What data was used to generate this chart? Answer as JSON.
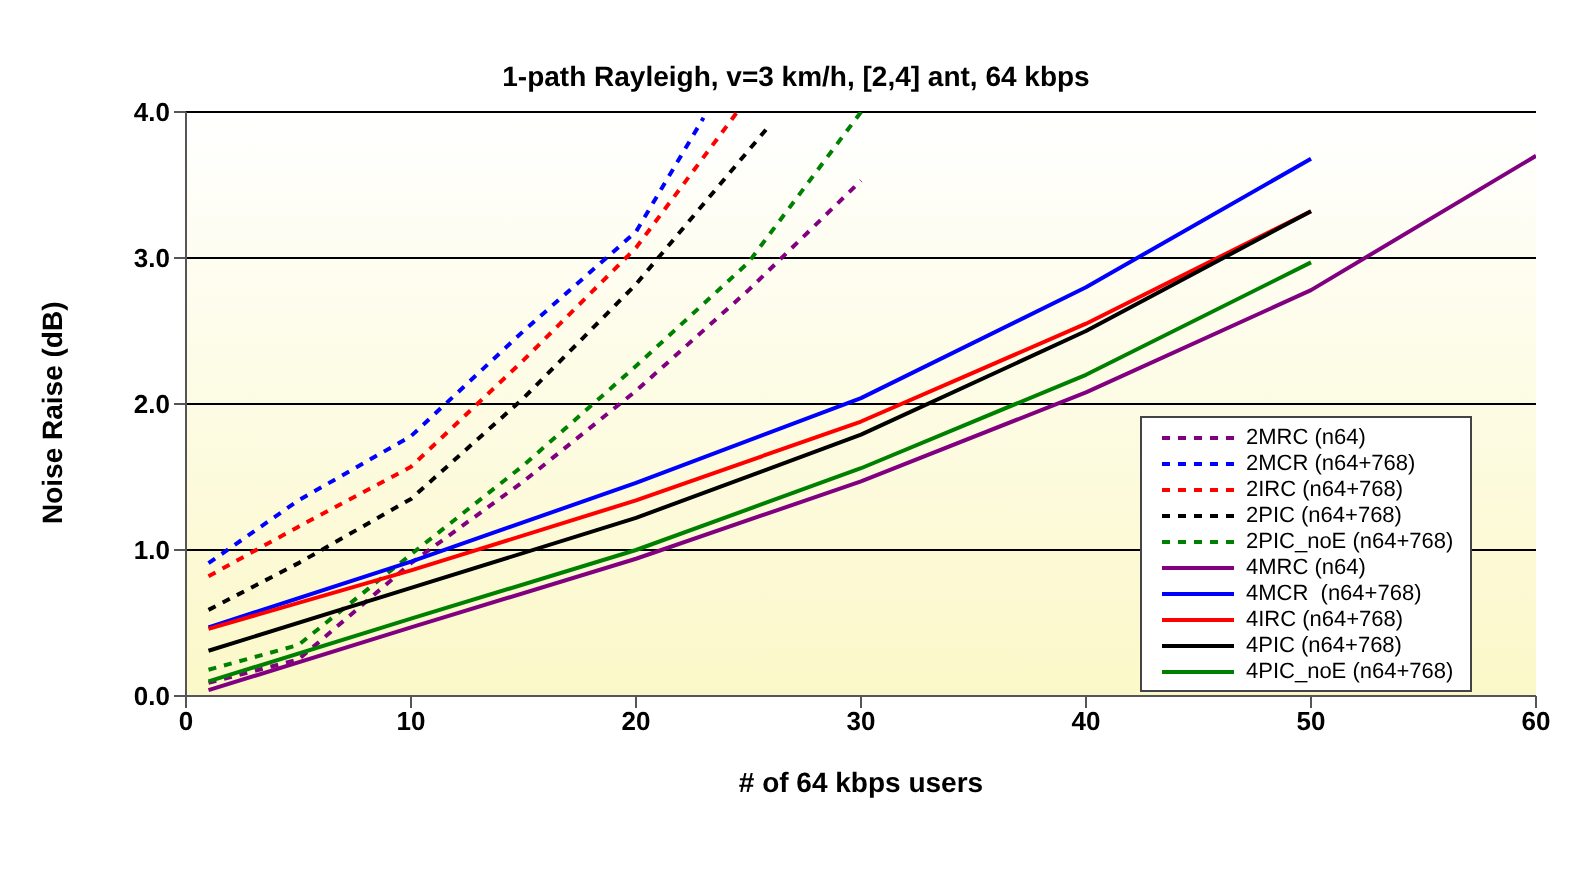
{
  "chart_data": {
    "type": "line",
    "title": "1-path Rayleigh, v=3 km/h, [2,4] ant, 64 kbps",
    "xlabel": "# of 64 kbps users",
    "ylabel": "Noise Raise (dB)",
    "xlim": [
      0,
      60
    ],
    "xticks": [
      0,
      10,
      20,
      30,
      40,
      50,
      60
    ],
    "ylim": [
      0,
      4
    ],
    "yticks": [
      {
        "value": 0,
        "label": "0.0"
      },
      {
        "value": 1,
        "label": "1.0"
      },
      {
        "value": 2,
        "label": "2.0"
      },
      {
        "value": 3,
        "label": "3.0"
      },
      {
        "value": 4,
        "label": "4.0"
      }
    ],
    "grid": "y",
    "legend": "bottom right",
    "marker": "none",
    "series": [
      {
        "name": "2MRC (n64)",
        "color": "#800080",
        "line_style": "dashed",
        "x": [
          1,
          5,
          10,
          15,
          20,
          25,
          30
        ],
        "values": [
          0.09,
          0.25,
          0.91,
          1.47,
          2.09,
          2.78,
          3.53
        ]
      },
      {
        "name": "2MCR (n64+768)",
        "color": "#0000ff",
        "line_style": "dashed",
        "x": [
          1,
          5,
          10,
          15,
          20,
          23
        ],
        "values": [
          0.91,
          1.34,
          1.78,
          2.5,
          3.18,
          3.96
        ]
      },
      {
        "name": "2IRC (n64+768)",
        "color": "#ff0000",
        "line_style": "dashed",
        "x": [
          1,
          5,
          10,
          15,
          20,
          24.5
        ],
        "values": [
          0.82,
          1.16,
          1.57,
          2.3,
          3.07,
          4.0
        ]
      },
      {
        "name": "2PIC (n64+768)",
        "color": "#000000",
        "line_style": "dashed",
        "x": [
          1,
          5,
          10,
          15,
          20,
          26
        ],
        "values": [
          0.59,
          0.91,
          1.35,
          2.04,
          2.82,
          3.92
        ]
      },
      {
        "name": "2PIC_noE (n64+768)",
        "color": "#008000",
        "line_style": "dashed",
        "x": [
          1,
          5,
          10,
          15,
          20,
          25,
          30
        ],
        "values": [
          0.18,
          0.35,
          0.97,
          1.58,
          2.26,
          2.97,
          4.0
        ]
      },
      {
        "name": "4MRC (n64)",
        "color": "#800080",
        "line_style": "solid",
        "x": [
          1,
          10,
          20,
          30,
          40,
          50,
          60
        ],
        "values": [
          0.04,
          0.47,
          0.94,
          1.47,
          2.08,
          2.78,
          3.7
        ]
      },
      {
        "name": "4MCR  (n64+768)",
        "color": "#0000ff",
        "line_style": "solid",
        "x": [
          1,
          10,
          20,
          30,
          40,
          50
        ],
        "values": [
          0.47,
          0.92,
          1.46,
          2.04,
          2.8,
          3.68
        ]
      },
      {
        "name": "4IRC (n64+768)",
        "color": "#ff0000",
        "line_style": "solid",
        "x": [
          1,
          10,
          20,
          30,
          40,
          50
        ],
        "values": [
          0.46,
          0.86,
          1.34,
          1.88,
          2.55,
          3.32
        ]
      },
      {
        "name": "4PIC (n64+768)",
        "color": "#000000",
        "line_style": "solid",
        "x": [
          1,
          10,
          20,
          30,
          40,
          50
        ],
        "values": [
          0.31,
          0.74,
          1.22,
          1.79,
          2.5,
          3.32
        ]
      },
      {
        "name": "4PIC_noE (n64+768)",
        "color": "#008000",
        "line_style": "solid",
        "x": [
          1,
          10,
          20,
          30,
          40,
          50
        ],
        "values": [
          0.1,
          0.53,
          1.0,
          1.56,
          2.2,
          2.97
        ]
      }
    ]
  }
}
